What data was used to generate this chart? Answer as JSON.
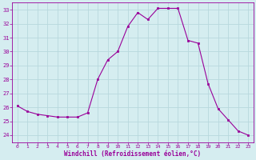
{
  "x": [
    0,
    1,
    2,
    3,
    4,
    5,
    6,
    7,
    8,
    9,
    10,
    11,
    12,
    13,
    14,
    15,
    16,
    17,
    18,
    19,
    20,
    21,
    22,
    23
  ],
  "y": [
    26.1,
    25.7,
    25.5,
    25.4,
    25.3,
    25.3,
    25.3,
    25.6,
    28.0,
    29.4,
    30.0,
    31.8,
    32.8,
    32.3,
    33.1,
    33.1,
    33.1,
    30.8,
    30.6,
    27.7,
    25.9,
    25.1,
    24.3,
    24.0
  ],
  "line_color": "#990099",
  "marker_color": "#990099",
  "bg_color": "#d5edf0",
  "grid_color": "#b8d8dd",
  "xlabel": "Windchill (Refroidissement éolien,°C)",
  "xlabel_color": "#990099",
  "tick_color": "#990099",
  "ylim": [
    23.5,
    33.5
  ],
  "xlim": [
    -0.5,
    23.5
  ],
  "yticks": [
    24,
    25,
    26,
    27,
    28,
    29,
    30,
    31,
    32,
    33
  ],
  "xticks": [
    0,
    1,
    2,
    3,
    4,
    5,
    6,
    7,
    8,
    9,
    10,
    11,
    12,
    13,
    14,
    15,
    16,
    17,
    18,
    19,
    20,
    21,
    22,
    23
  ]
}
